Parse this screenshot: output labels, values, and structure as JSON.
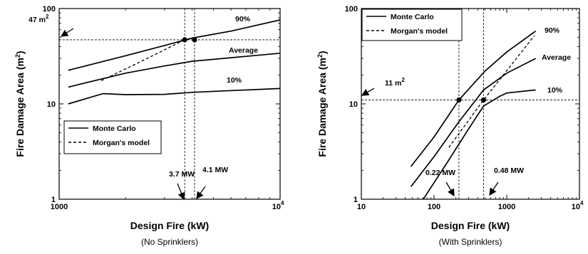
{
  "chart_data": [
    {
      "type": "line",
      "xscale": "log",
      "yscale": "log",
      "xlim": [
        1000,
        10000
      ],
      "ylim": [
        1,
        100
      ],
      "xlabel": "Design Fire (kW)",
      "ylabel": "Fire Damage Area (m2)",
      "caption": "(No Sprinklers)",
      "x_ticks": [
        {
          "v": 1000,
          "t": "1000"
        },
        {
          "v": 10000,
          "t": "10"
        }
      ],
      "y_ticks": [
        {
          "v": 1,
          "t": "1"
        },
        {
          "v": 10,
          "t": "10"
        },
        {
          "v": 100,
          "t": "100"
        }
      ],
      "x_tick_exponent": "4",
      "legend": {
        "position": "lower-left",
        "entries": [
          {
            "label": "Monte Carlo",
            "style": "solid"
          },
          {
            "label": "Morgan's model",
            "style": "dashed"
          }
        ]
      },
      "series": [
        {
          "name": "90%",
          "style": "solid",
          "x": [
            1100,
            2000,
            3000,
            4000,
            6000,
            10000
          ],
          "y": [
            22.5,
            32,
            41,
            49,
            58,
            76
          ]
        },
        {
          "name": "Average",
          "style": "solid",
          "x": [
            1100,
            2000,
            3000,
            4000,
            6000,
            10000
          ],
          "y": [
            15,
            21,
            25,
            28,
            30.5,
            34
          ]
        },
        {
          "name": "10%",
          "style": "solid",
          "x": [
            1100,
            1580,
            2000,
            3000,
            4000,
            6000,
            10000
          ],
          "y": [
            10,
            12.8,
            12.5,
            12.6,
            13.2,
            13.8,
            14.5
          ]
        },
        {
          "name": "Morgan's model",
          "style": "dashed",
          "x": [
            1550,
            2500,
            3700
          ],
          "y": [
            17.5,
            30,
            47
          ]
        }
      ],
      "points": [
        {
          "x": 3700,
          "y": 47
        },
        {
          "x": 4100,
          "y": 47
        }
      ],
      "ref_lines": {
        "h": [
          47
        ],
        "v": [
          3700,
          4100
        ]
      },
      "annotations": [
        {
          "text": "47 m",
          "sup": "2",
          "arrow_to": "y"
        },
        {
          "text": "3.7 MW",
          "arrow_to": "x"
        },
        {
          "text": "4.1 MW",
          "arrow_to": "x"
        },
        {
          "text": "90%"
        },
        {
          "text": "Average"
        },
        {
          "text": "10%"
        }
      ]
    },
    {
      "type": "line",
      "xscale": "log",
      "yscale": "log",
      "xlim": [
        10,
        10000
      ],
      "ylim": [
        1,
        100
      ],
      "xlabel": "Design Fire (kW)",
      "ylabel": "Fire Damage Area (m2)",
      "caption": "(With Sprinklers)",
      "x_ticks": [
        {
          "v": 10,
          "t": "10"
        },
        {
          "v": 100,
          "t": "100"
        },
        {
          "v": 1000,
          "t": "1000"
        },
        {
          "v": 10000,
          "t": "10"
        }
      ],
      "y_ticks": [
        {
          "v": 1,
          "t": "1"
        },
        {
          "v": 10,
          "t": "10"
        },
        {
          "v": 100,
          "t": "100"
        }
      ],
      "x_tick_exponent": "4",
      "legend": {
        "position": "top-left",
        "entries": [
          {
            "label": "Monte Carlo",
            "style": "solid"
          },
          {
            "label": "Morgan's model",
            "style": "dashed"
          }
        ]
      },
      "series": [
        {
          "name": "90%",
          "style": "solid",
          "x": [
            48,
            100,
            220,
            500,
            1000,
            2500
          ],
          "y": [
            2.2,
            4.5,
            11,
            22,
            35,
            58
          ]
        },
        {
          "name": "Average",
          "style": "solid",
          "x": [
            48,
            100,
            220,
            480,
            1000,
            2500
          ],
          "y": [
            1.35,
            2.8,
            6.5,
            14,
            21,
            30
          ]
        },
        {
          "name": "10%",
          "style": "solid",
          "x": [
            65,
            150,
            300,
            480,
            800,
            1000,
            2500
          ],
          "y": [
            0.9,
            2.4,
            5.5,
            9.5,
            12,
            13,
            14
          ]
        },
        {
          "name": "Morgan's model",
          "style": "dashed",
          "x": [
            160,
            480,
            2400
          ],
          "y": [
            3.5,
            11,
            52
          ]
        }
      ],
      "points": [
        {
          "x": 220,
          "y": 11
        },
        {
          "x": 480,
          "y": 11
        }
      ],
      "ref_lines": {
        "h": [
          11
        ],
        "v": [
          220,
          480
        ]
      },
      "annotations": [
        {
          "text": "11 m",
          "sup": "2",
          "arrow_to": "y"
        },
        {
          "text": "0.22 MW",
          "arrow_to": "x"
        },
        {
          "text": "0.48 MW",
          "arrow_to": "x"
        },
        {
          "text": "90%"
        },
        {
          "text": "Average"
        },
        {
          "text": "10%"
        }
      ]
    }
  ]
}
